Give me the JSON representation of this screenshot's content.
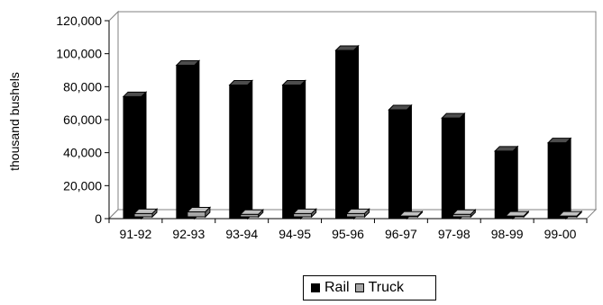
{
  "chart_data": {
    "type": "bar",
    "categories": [
      "91-92",
      "92-93",
      "93-94",
      "94-95",
      "95-96",
      "96-97",
      "97-98",
      "98-99",
      "99-00"
    ],
    "series": [
      {
        "name": "Rail",
        "values": [
          74000,
          93000,
          81000,
          81000,
          102000,
          66000,
          61000,
          41000,
          46000
        ]
      },
      {
        "name": "Truck",
        "values": [
          2000,
          3000,
          1500,
          2000,
          2000,
          500,
          1500,
          500,
          500
        ]
      }
    ],
    "title": "",
    "xlabel": "",
    "ylabel": "thousand bushels",
    "ylim": [
      0,
      120000
    ],
    "yticks": [
      "0",
      "20,000",
      "40,000",
      "60,000",
      "80,000",
      "100,000",
      "120,000"
    ],
    "legend_position": "bottom",
    "grid": false,
    "three_d": true,
    "colors": {
      "Rail": "#000000",
      "Truck": "#a6a6a6"
    }
  }
}
